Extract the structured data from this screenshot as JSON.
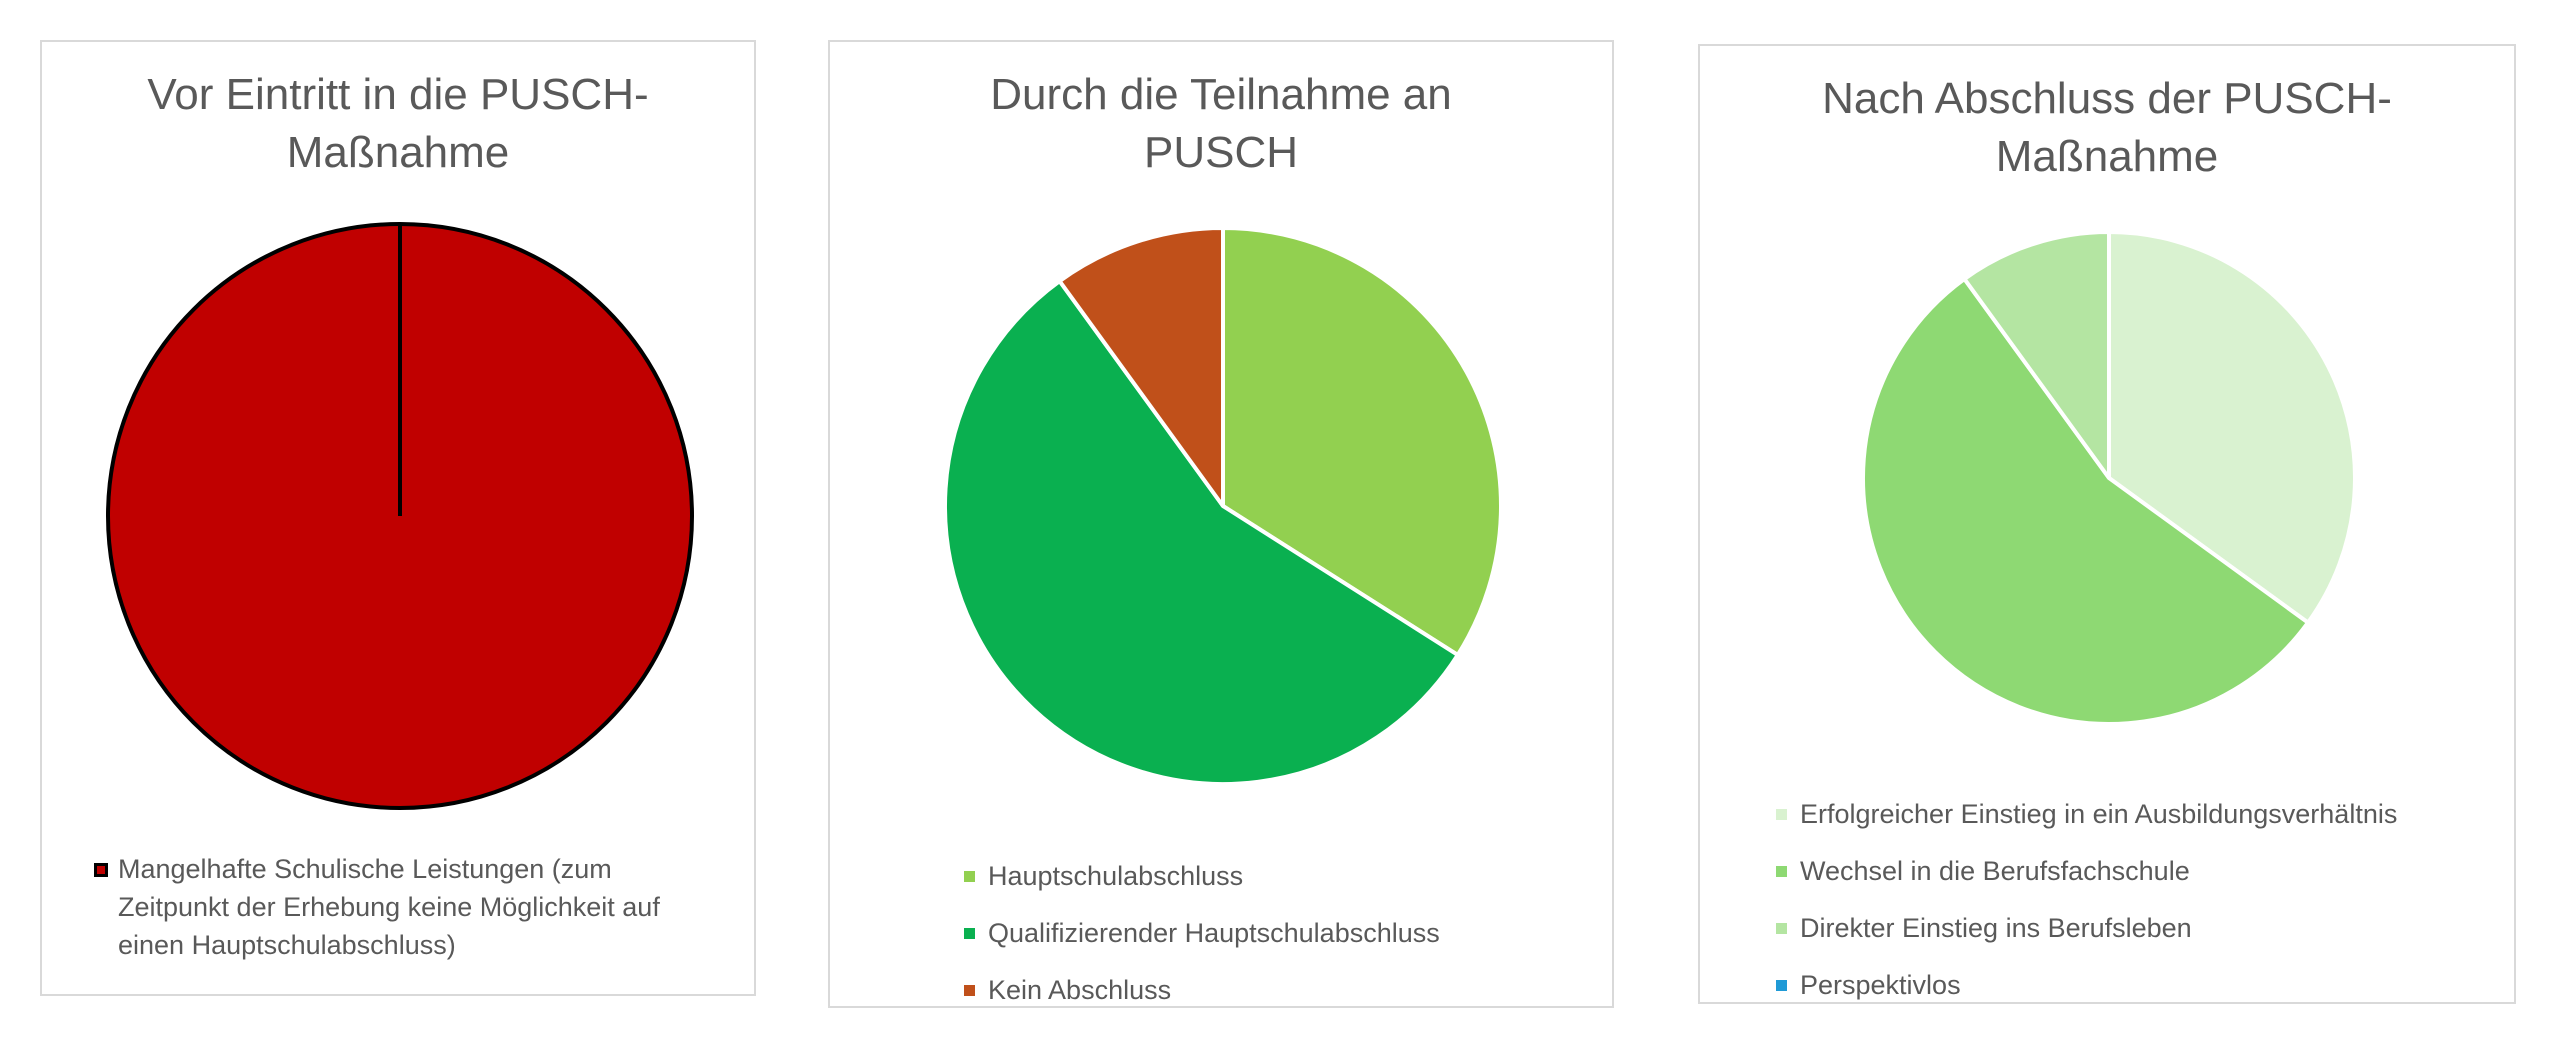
{
  "chart_data": [
    {
      "type": "pie",
      "title_lines": [
        "Vor Eintritt in die PUSCH-",
        "Maßnahme"
      ],
      "categories": [
        "Mangelhafte Schulische Leistungen (zum Zeitpunkt der Erhebung keine Möglichkeit auf einen Hauptschulabschluss)"
      ],
      "legend_lines": [
        "Mangelhafte Schulische Leistungen (zum",
        "Zeitpunkt der Erhebung keine Möglichkeit auf",
        "einen Hauptschulabschluss)"
      ],
      "values": [
        100
      ],
      "colors": [
        "#c00000"
      ],
      "slice_border": "#000000",
      "legend_position": "bottom"
    },
    {
      "type": "pie",
      "title_lines": [
        "Durch die Teilnahme an",
        "PUSCH"
      ],
      "categories": [
        "Hauptschulabschluss",
        "Qualifizierender Hauptschulabschluss",
        "Kein Abschluss"
      ],
      "values": [
        34,
        56,
        10
      ],
      "colors": [
        "#92d050",
        "#0ab050",
        "#c0501a"
      ],
      "slice_border": "#ffffff",
      "legend_position": "bottom"
    },
    {
      "type": "pie",
      "title_lines": [
        "Nach Abschluss der PUSCH-",
        "Maßnahme"
      ],
      "categories": [
        "Erfolgreicher Einstieg in ein Ausbildungsverhältnis",
        "Wechsel in die Berufsfachschule",
        "Direkter Einstieg ins Berufsleben",
        "Perspektivlos"
      ],
      "values": [
        35,
        55,
        10,
        0
      ],
      "colors": [
        "#d9f2d0",
        "#8ed973",
        "#b4e5a2",
        "#1f9ad6"
      ],
      "slice_border": "#ffffff",
      "legend_position": "bottom"
    }
  ]
}
